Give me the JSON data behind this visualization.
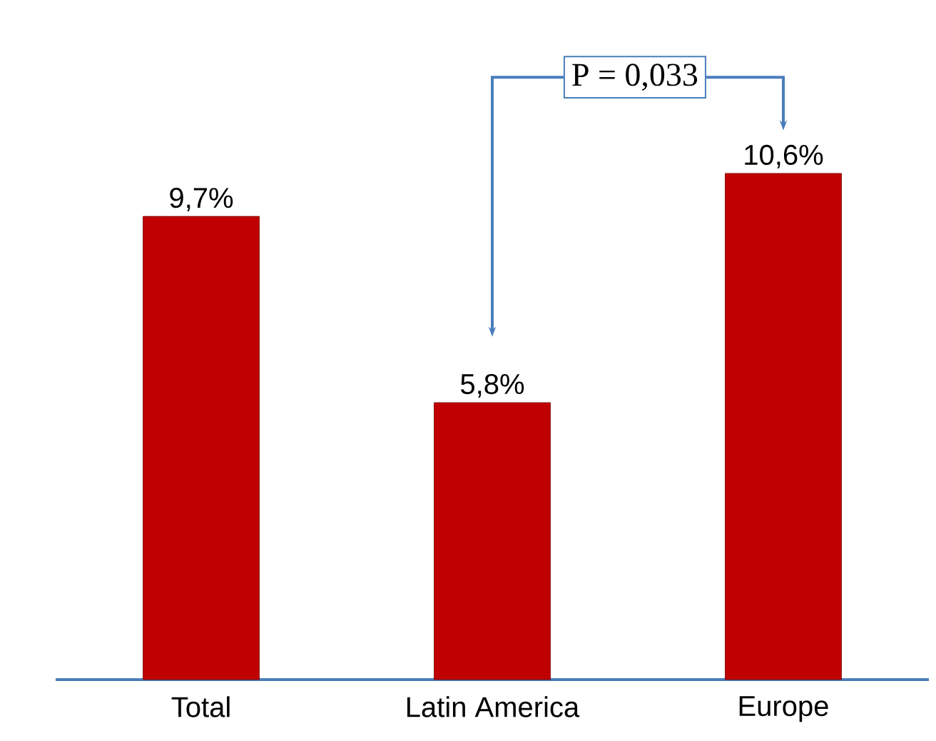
{
  "chart_data": {
    "type": "bar",
    "categories": [
      "Total",
      "Latin America",
      "Europe"
    ],
    "values": [
      9.7,
      5.8,
      10.6
    ],
    "value_labels": [
      "9,7%",
      "5,8%",
      "10,6%"
    ],
    "color": "#c00000",
    "annotations": [
      "P = 0,033"
    ]
  }
}
